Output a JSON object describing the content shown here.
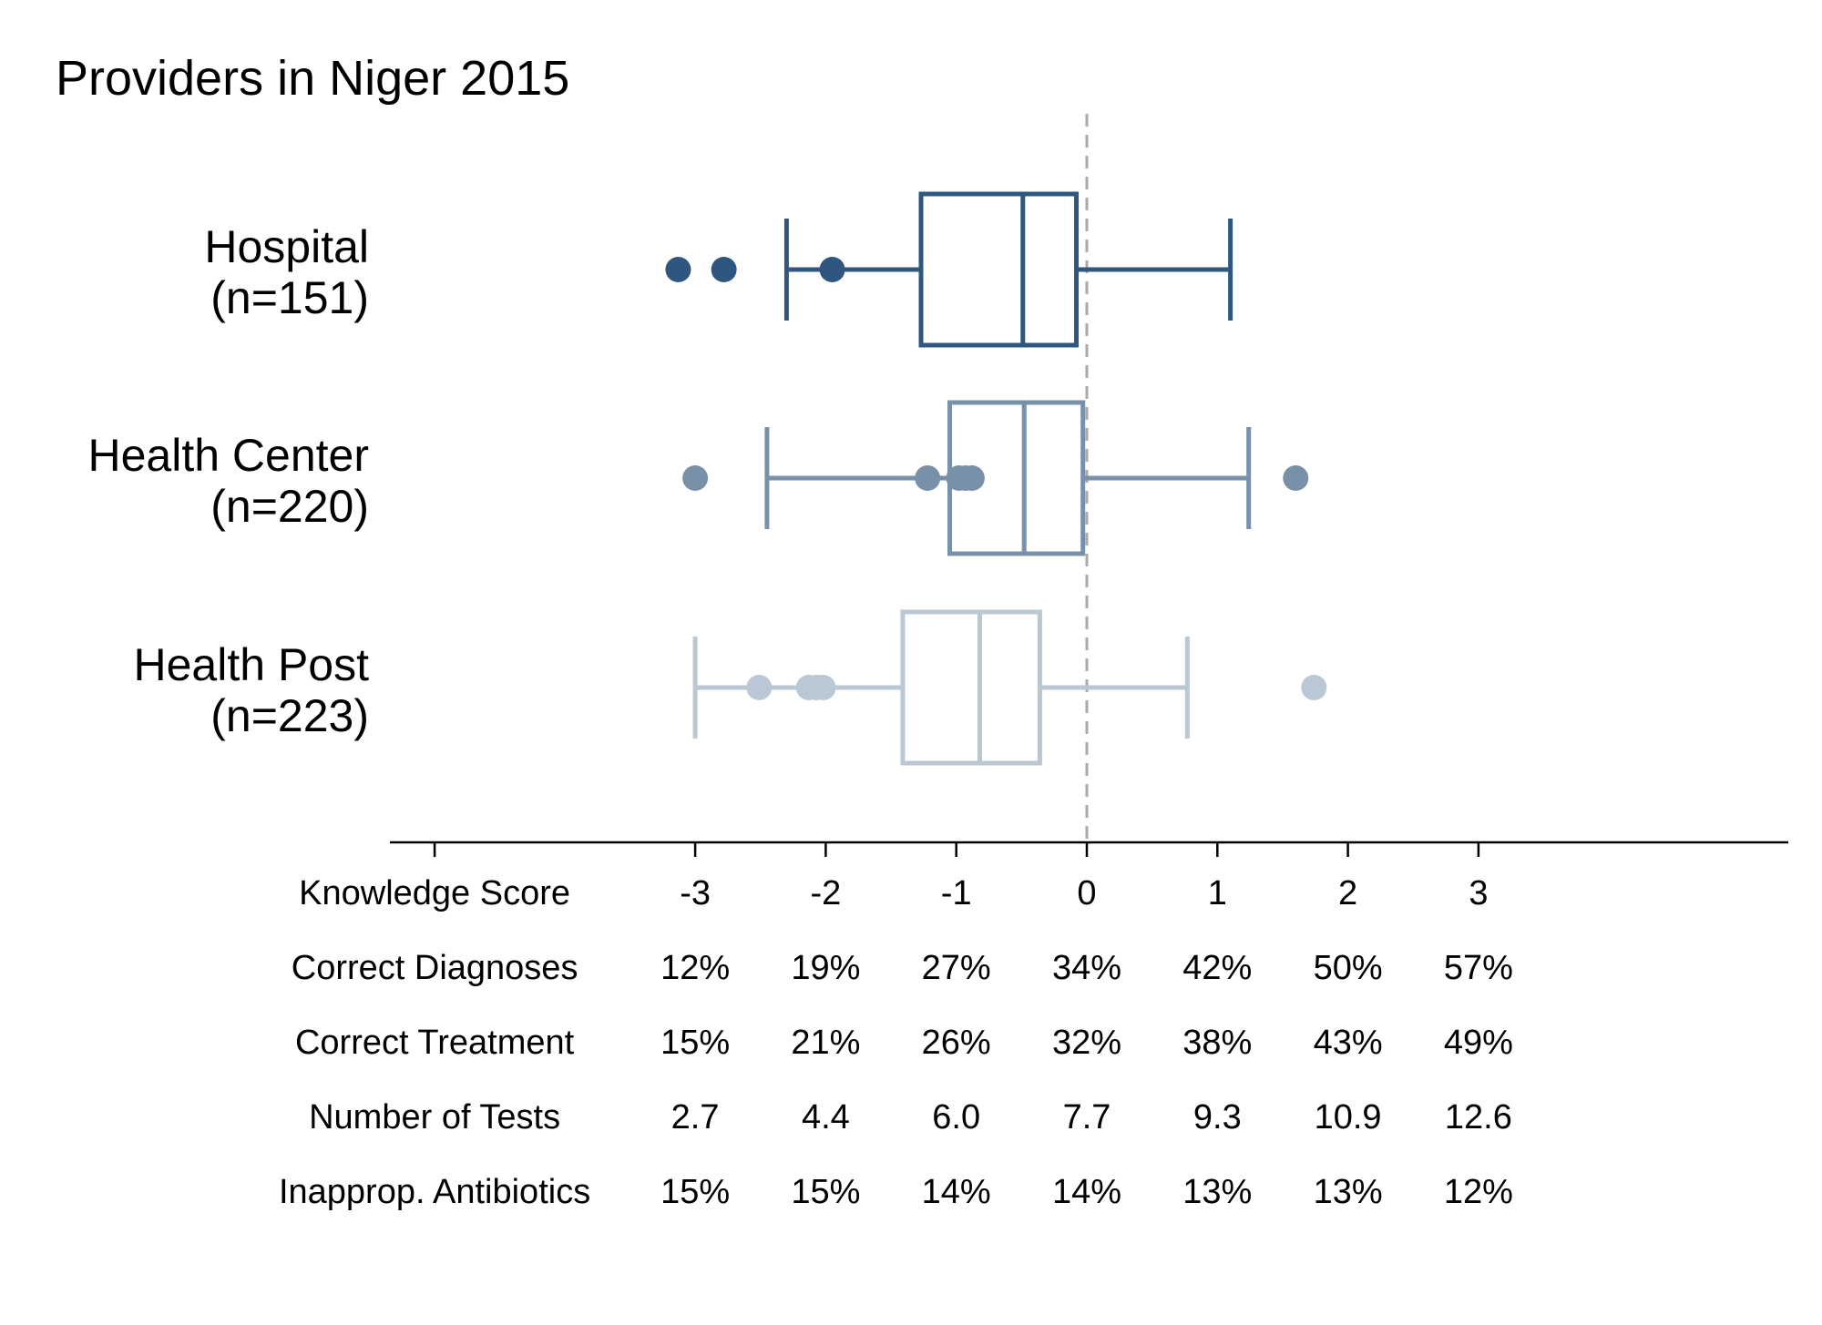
{
  "chart_data": {
    "type": "boxplot",
    "title": "Providers in Niger 2015",
    "orientation": "horizontal",
    "xlim": [
      -3.35,
      7.35
    ],
    "reference_line": {
      "x": 0,
      "style": "dashed",
      "color": "#aaaaaa"
    },
    "grid": false,
    "legend": "none",
    "groups": [
      {
        "label_line1": "Hospital",
        "label_line2": "(n=151)",
        "color": "#2f567f",
        "whisker_low": -2.3,
        "q1": -1.27,
        "median": -0.49,
        "q3": -0.08,
        "whisker_high": 1.1,
        "outliers": [
          -3.13,
          -2.78,
          -1.95
        ]
      },
      {
        "label_line1": "Health Center",
        "label_line2": "(n=220)",
        "color": "#7890a8",
        "whisker_low": -2.45,
        "q1": -1.05,
        "median": -0.48,
        "q3": -0.03,
        "whisker_high": 1.24,
        "outliers": [
          -3.0,
          -1.22,
          -0.98,
          -0.93,
          -0.88,
          1.6
        ]
      },
      {
        "label_line1": "Health Post",
        "label_line2": "(n=223)",
        "color": "#bac8d5",
        "whisker_low": -3.0,
        "q1": -1.41,
        "median": -0.82,
        "q3": -0.36,
        "whisker_high": 0.77,
        "outliers": [
          -2.13,
          -2.51,
          -2.07,
          -2.02,
          1.74
        ]
      }
    ],
    "table": {
      "ticks": [
        -3,
        -2,
        -1,
        0,
        1,
        2,
        3
      ],
      "tick_labels": [
        "-3",
        "-2",
        "-1",
        "0",
        "1",
        "2",
        "3"
      ],
      "rows": [
        {
          "label": "Knowledge Score",
          "values": [
            "-3",
            "-2",
            "-1",
            "0",
            "1",
            "2",
            "3"
          ]
        },
        {
          "label": "Correct Diagnoses",
          "values": [
            "12%",
            "19%",
            "27%",
            "34%",
            "42%",
            "50%",
            "57%"
          ]
        },
        {
          "label": "Correct Treatment",
          "values": [
            "15%",
            "21%",
            "26%",
            "32%",
            "38%",
            "43%",
            "49%"
          ]
        },
        {
          "label": "Number of Tests",
          "values": [
            "2.7",
            "4.4",
            "6.0",
            "7.7",
            "9.3",
            "10.9",
            "12.6"
          ]
        },
        {
          "label": "Inapprop. Antibiotics",
          "values": [
            "15%",
            "15%",
            "14%",
            "14%",
            "13%",
            "13%",
            "12%"
          ]
        }
      ]
    }
  }
}
